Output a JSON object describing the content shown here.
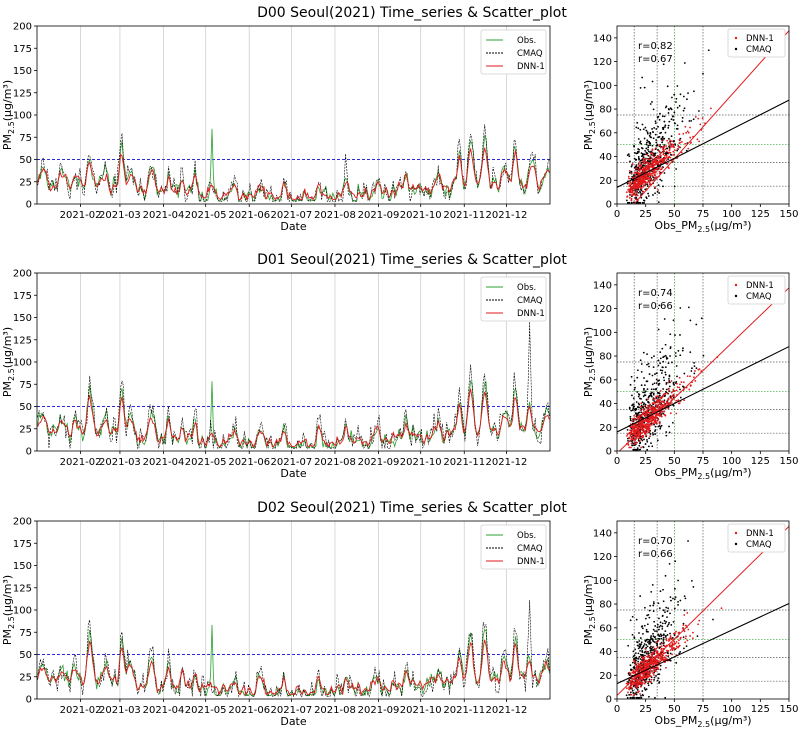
{
  "chart_data": [
    {
      "id": "D00",
      "title": "D00 Seoul(2021) Time_series & Scatter_plot",
      "timeseries": {
        "type": "line",
        "xlabel": "Date",
        "ylabel_main": "PM",
        "ylabel_sub": "2.5",
        "ylabel_unit": "(μg/m³)",
        "ylim": [
          0,
          200
        ],
        "yticks": [
          "0",
          "25",
          "50",
          "75",
          "100",
          "125",
          "150",
          "175",
          "200"
        ],
        "xticks": [
          "2021-02",
          "2021-03",
          "2021-04",
          "2021-05",
          "2021-06",
          "2021-07",
          "2021-08",
          "2021-09",
          "2021-10",
          "2021-11",
          "2021-12"
        ],
        "threshold": 50,
        "legend": [
          {
            "name": "Obs.",
            "color": "#2ca02c"
          },
          {
            "name": "CMAQ",
            "color": "#000000"
          },
          {
            "name": "DNN-1",
            "color": "#e31a1c"
          }
        ],
        "events": [
          {
            "day": 4,
            "amp": 20
          },
          {
            "day": 18,
            "amp": 14
          },
          {
            "day": 27,
            "amp": 12
          },
          {
            "day": 37,
            "amp": 35
          },
          {
            "day": 48,
            "amp": 22
          },
          {
            "day": 60,
            "amp": 48
          },
          {
            "day": 66,
            "amp": 24
          },
          {
            "day": 81,
            "amp": 30
          },
          {
            "day": 93,
            "amp": 20
          },
          {
            "day": 103,
            "amp": 18
          },
          {
            "day": 112,
            "amp": 22
          },
          {
            "day": 124,
            "amp": 75,
            "obsOnly": true
          },
          {
            "day": 140,
            "amp": 18
          },
          {
            "day": 158,
            "amp": 20
          },
          {
            "day": 175,
            "amp": 14
          },
          {
            "day": 200,
            "amp": 16
          },
          {
            "day": 220,
            "amp": 20
          },
          {
            "day": 241,
            "amp": 14
          },
          {
            "day": 262,
            "amp": 20
          },
          {
            "day": 285,
            "amp": 14
          },
          {
            "day": 300,
            "amp": 35
          },
          {
            "day": 308,
            "amp": 55
          },
          {
            "day": 318,
            "amp": 60
          },
          {
            "day": 332,
            "amp": 24
          },
          {
            "day": 340,
            "amp": 40
          },
          {
            "day": 352,
            "amp": 26
          },
          {
            "day": 362,
            "amp": 18
          }
        ]
      },
      "scatter": {
        "type": "scatter",
        "xlabel_main": "Obs_PM",
        "xlabel_sub": "2.5",
        "xlabel_unit": "(μg/m³)",
        "ylabel_main": "PM",
        "ylabel_sub": "2.5",
        "ylabel_unit": "(μg/m³)",
        "xlim": [
          0,
          150
        ],
        "ylim": [
          0,
          150
        ],
        "xticks": [
          "0",
          "25",
          "50",
          "75",
          "100",
          "125",
          "150"
        ],
        "yticks": [
          "0",
          "20",
          "40",
          "60",
          "80",
          "100",
          "120",
          "140"
        ],
        "legend": [
          {
            "name": "DNN-1",
            "color": "#e31a1c"
          },
          {
            "name": "CMAQ",
            "color": "#000000"
          }
        ],
        "r_dnn": "r=0.82",
        "r_cmaq": "r=0.67",
        "fit_dnn": {
          "slope": 1.08,
          "intercept": -16
        },
        "fit_cmaq": {
          "slope": 0.49,
          "intercept": 14
        },
        "ref_x": [
          15,
          35,
          50,
          75
        ],
        "ref_y": [
          15,
          35,
          50,
          75
        ]
      }
    },
    {
      "id": "D01",
      "title": "D01 Seoul(2021) Time_series & Scatter_plot",
      "timeseries": {
        "type": "line",
        "xlabel": "Date",
        "ylabel_main": "PM",
        "ylabel_sub": "2.5",
        "ylabel_unit": "(μg/m³)",
        "ylim": [
          0,
          200
        ],
        "yticks": [
          "0",
          "25",
          "50",
          "75",
          "100",
          "125",
          "150",
          "175",
          "200"
        ],
        "xticks": [
          "2021-02",
          "2021-03",
          "2021-04",
          "2021-05",
          "2021-06",
          "2021-07",
          "2021-08",
          "2021-09",
          "2021-10",
          "2021-11",
          "2021-12"
        ],
        "threshold": 50,
        "legend": [
          {
            "name": "Obs.",
            "color": "#2ca02c"
          },
          {
            "name": "CMAQ",
            "color": "#000000"
          },
          {
            "name": "DNN-1",
            "color": "#e31a1c"
          }
        ],
        "events": [
          {
            "day": 4,
            "amp": 22
          },
          {
            "day": 18,
            "amp": 16
          },
          {
            "day": 27,
            "amp": 14
          },
          {
            "day": 37,
            "amp": 55
          },
          {
            "day": 48,
            "amp": 24
          },
          {
            "day": 60,
            "amp": 55
          },
          {
            "day": 66,
            "amp": 26
          },
          {
            "day": 81,
            "amp": 32
          },
          {
            "day": 93,
            "amp": 22
          },
          {
            "day": 103,
            "amp": 20
          },
          {
            "day": 112,
            "amp": 24
          },
          {
            "day": 124,
            "amp": 75,
            "obsOnly": true
          },
          {
            "day": 140,
            "amp": 20
          },
          {
            "day": 158,
            "amp": 22
          },
          {
            "day": 175,
            "amp": 16
          },
          {
            "day": 200,
            "amp": 18
          },
          {
            "day": 220,
            "amp": 22
          },
          {
            "day": 241,
            "amp": 16
          },
          {
            "day": 262,
            "amp": 22
          },
          {
            "day": 285,
            "amp": 16
          },
          {
            "day": 300,
            "amp": 40
          },
          {
            "day": 308,
            "amp": 60
          },
          {
            "day": 318,
            "amp": 62
          },
          {
            "day": 332,
            "amp": 26
          },
          {
            "day": 340,
            "amp": 50
          },
          {
            "day": 350,
            "amp": 110,
            "cmaqOnly": true
          },
          {
            "day": 362,
            "amp": 22
          }
        ]
      },
      "scatter": {
        "type": "scatter",
        "xlabel_main": "Obs_PM",
        "xlabel_sub": "2.5",
        "xlabel_unit": "(μg/m³)",
        "ylabel_main": "PM",
        "ylabel_sub": "2.5",
        "ylabel_unit": "(μg/m³)",
        "xlim": [
          0,
          150
        ],
        "ylim": [
          0,
          150
        ],
        "xticks": [
          "0",
          "25",
          "50",
          "75",
          "100",
          "125",
          "150"
        ],
        "yticks": [
          "0",
          "20",
          "40",
          "60",
          "80",
          "100",
          "120",
          "140"
        ],
        "legend": [
          {
            "name": "DNN-1",
            "color": "#e31a1c"
          },
          {
            "name": "CMAQ",
            "color": "#000000"
          }
        ],
        "r_dnn": "r=0.74",
        "r_cmaq": "r=0.66",
        "fit_dnn": {
          "slope": 0.93,
          "intercept": -2
        },
        "fit_cmaq": {
          "slope": 0.48,
          "intercept": 16
        },
        "ref_x": [
          15,
          35,
          50,
          75
        ],
        "ref_y": [
          15,
          35,
          50,
          75
        ]
      }
    },
    {
      "id": "D02",
      "title": "D02 Seoul(2021) Time_series & Scatter_plot",
      "timeseries": {
        "type": "line",
        "xlabel": "Date",
        "ylabel_main": "PM",
        "ylabel_sub": "2.5",
        "ylabel_unit": "(μg/m³)",
        "ylim": [
          0,
          200
        ],
        "yticks": [
          "0",
          "25",
          "50",
          "75",
          "100",
          "125",
          "150",
          "175",
          "200"
        ],
        "xticks": [
          "2021-02",
          "2021-03",
          "2021-04",
          "2021-05",
          "2021-06",
          "2021-07",
          "2021-08",
          "2021-09",
          "2021-10",
          "2021-11",
          "2021-12"
        ],
        "threshold": 50,
        "legend": [
          {
            "name": "Obs.",
            "color": "#2ca02c"
          },
          {
            "name": "CMAQ",
            "color": "#000000"
          },
          {
            "name": "DNN-1",
            "color": "#e31a1c"
          }
        ],
        "events": [
          {
            "day": 4,
            "amp": 20
          },
          {
            "day": 18,
            "amp": 14
          },
          {
            "day": 27,
            "amp": 12
          },
          {
            "day": 37,
            "amp": 58
          },
          {
            "day": 48,
            "amp": 24
          },
          {
            "day": 60,
            "amp": 55
          },
          {
            "day": 66,
            "amp": 26
          },
          {
            "day": 81,
            "amp": 34
          },
          {
            "day": 93,
            "amp": 24
          },
          {
            "day": 103,
            "amp": 20
          },
          {
            "day": 112,
            "amp": 22
          },
          {
            "day": 124,
            "amp": 75,
            "obsOnly": true
          },
          {
            "day": 140,
            "amp": 20
          },
          {
            "day": 158,
            "amp": 22
          },
          {
            "day": 175,
            "amp": 14
          },
          {
            "day": 200,
            "amp": 16
          },
          {
            "day": 220,
            "amp": 20
          },
          {
            "day": 241,
            "amp": 14
          },
          {
            "day": 262,
            "amp": 20
          },
          {
            "day": 285,
            "amp": 14
          },
          {
            "day": 300,
            "amp": 36
          },
          {
            "day": 308,
            "amp": 55
          },
          {
            "day": 318,
            "amp": 58
          },
          {
            "day": 332,
            "amp": 24
          },
          {
            "day": 340,
            "amp": 48
          },
          {
            "day": 350,
            "amp": 95,
            "cmaqOnly": true
          },
          {
            "day": 362,
            "amp": 20
          }
        ]
      },
      "scatter": {
        "type": "scatter",
        "xlabel_main": "Obs_PM",
        "xlabel_sub": "2.5",
        "xlabel_unit": "(μg/m³)",
        "ylabel_main": "PM",
        "ylabel_sub": "2.5",
        "ylabel_unit": "(μg/m³)",
        "xlim": [
          0,
          150
        ],
        "ylim": [
          0,
          150
        ],
        "xticks": [
          "0",
          "25",
          "50",
          "75",
          "100",
          "125",
          "150"
        ],
        "yticks": [
          "0",
          "20",
          "40",
          "60",
          "80",
          "100",
          "120",
          "140"
        ],
        "legend": [
          {
            "name": "DNN-1",
            "color": "#e31a1c"
          },
          {
            "name": "CMAQ",
            "color": "#000000"
          }
        ],
        "r_dnn": "r=0.70",
        "r_cmaq": "r=0.66",
        "fit_dnn": {
          "slope": 0.95,
          "intercept": 3
        },
        "fit_cmaq": {
          "slope": 0.45,
          "intercept": 13
        },
        "ref_x": [
          15,
          35,
          50,
          75
        ],
        "ref_y": [
          15,
          35,
          50,
          75
        ]
      }
    }
  ]
}
